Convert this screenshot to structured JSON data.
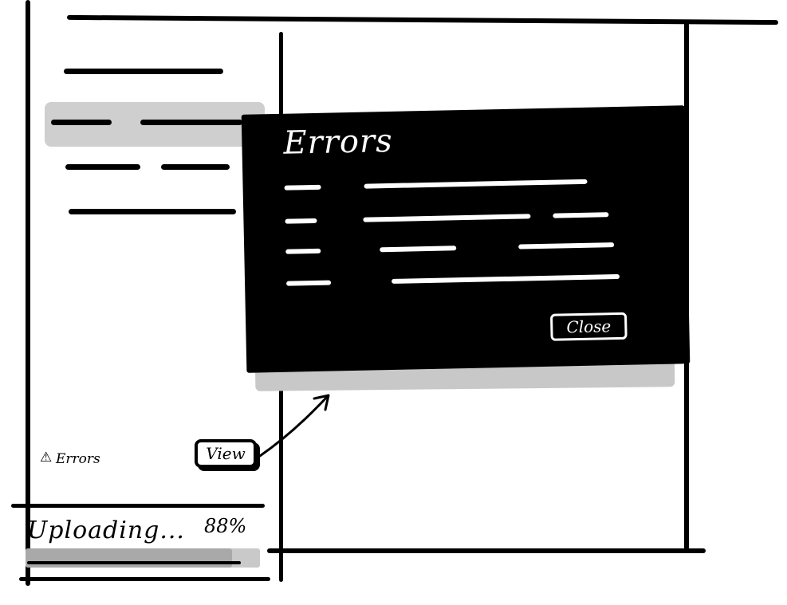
{
  "sidebar": {
    "items": [
      {
        "id": "title",
        "active": false
      },
      {
        "id": "item-1",
        "active": true
      },
      {
        "id": "item-2",
        "active": false
      },
      {
        "id": "item-3",
        "active": false
      }
    ],
    "errors": {
      "icon": "warning-icon",
      "icon_glyph": "⚠",
      "label": "Errors",
      "view_label": "View"
    },
    "upload": {
      "label": "Uploading...",
      "percent_text": "88%",
      "progress": 0.88
    }
  },
  "modal": {
    "title": "Errors",
    "row_count": 4,
    "close_label": "Close"
  },
  "colors": {
    "ink": "#000000",
    "paper": "#ffffff",
    "highlight": "#cfcfcf"
  }
}
